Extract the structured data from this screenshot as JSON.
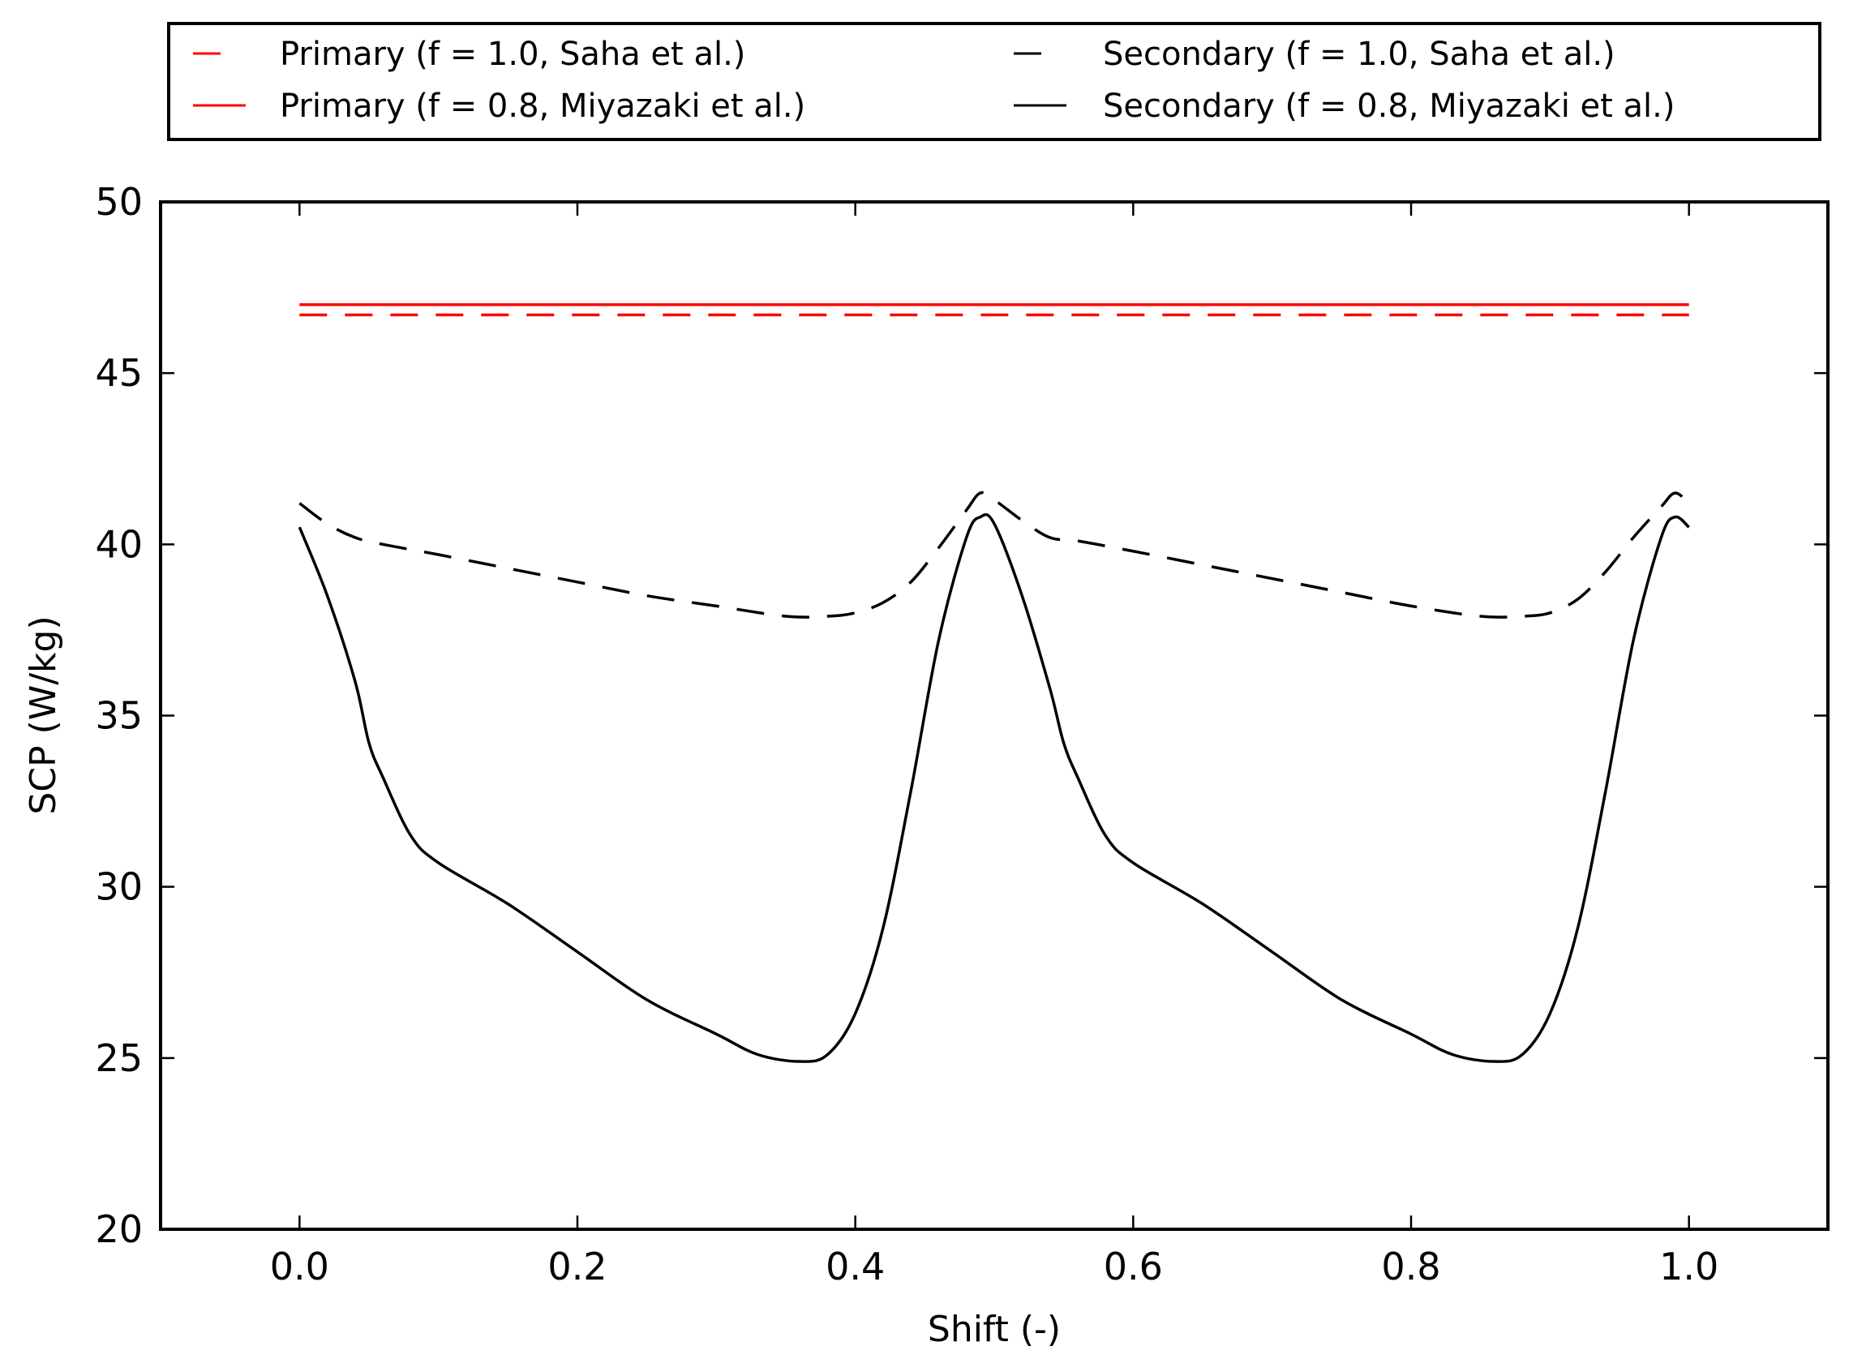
{
  "chart_data": {
    "type": "line",
    "title": "",
    "xlabel": "Shift (-)",
    "ylabel": "SCP (W/kg)",
    "xlim": [
      -0.1,
      1.1
    ],
    "ylim": [
      20,
      50
    ],
    "xticks": [
      0.0,
      0.2,
      0.4,
      0.6,
      0.8,
      1.0
    ],
    "xtick_labels": [
      "0.0",
      "0.2",
      "0.4",
      "0.6",
      "0.8",
      "1.0"
    ],
    "yticks": [
      20,
      25,
      30,
      35,
      40,
      45,
      50
    ],
    "ytick_labels": [
      "20",
      "25",
      "30",
      "35",
      "40",
      "45",
      "50"
    ],
    "grid": false,
    "legend_position": "top (outside, above plot), two columns",
    "series": [
      {
        "name": "Primary (f = 1.0, Saha et al.)",
        "color": "#ff0000",
        "style": "dashed",
        "x": [
          0.0,
          1.0
        ],
        "y": [
          46.7,
          46.7
        ]
      },
      {
        "name": "Primary (f = 0.8, Miyazaki et al.)",
        "color": "#ff0000",
        "style": "solid",
        "x": [
          0.0,
          1.0
        ],
        "y": [
          47.0,
          47.0
        ]
      },
      {
        "name": "Secondary (f = 1.0, Saha et al.)",
        "color": "#000000",
        "style": "dashed",
        "x": [
          0.0,
          0.02,
          0.04,
          0.06,
          0.1,
          0.15,
          0.2,
          0.25,
          0.3,
          0.35,
          0.38,
          0.4,
          0.42,
          0.44,
          0.46,
          0.48,
          0.49,
          0.5,
          0.52,
          0.54,
          0.56,
          0.6,
          0.65,
          0.7,
          0.75,
          0.8,
          0.85,
          0.88,
          0.9,
          0.92,
          0.94,
          0.96,
          0.98,
          0.99,
          1.0
        ],
        "y": [
          41.2,
          40.6,
          40.2,
          40.0,
          39.7,
          39.3,
          38.9,
          38.5,
          38.2,
          37.9,
          37.9,
          38.0,
          38.3,
          38.9,
          39.9,
          41.0,
          41.5,
          41.3,
          40.7,
          40.2,
          40.1,
          39.8,
          39.4,
          39.0,
          38.6,
          38.2,
          37.9,
          37.9,
          38.0,
          38.4,
          39.2,
          40.2,
          41.1,
          41.5,
          41.2
        ]
      },
      {
        "name": "Secondary (f = 0.8, Miyazaki et al.)",
        "color": "#000000",
        "style": "solid",
        "x": [
          0.0,
          0.02,
          0.04,
          0.05,
          0.06,
          0.08,
          0.1,
          0.15,
          0.2,
          0.25,
          0.3,
          0.33,
          0.36,
          0.38,
          0.4,
          0.42,
          0.44,
          0.46,
          0.48,
          0.49,
          0.5,
          0.52,
          0.54,
          0.55,
          0.56,
          0.58,
          0.6,
          0.65,
          0.7,
          0.75,
          0.8,
          0.83,
          0.86,
          0.88,
          0.9,
          0.92,
          0.94,
          0.96,
          0.98,
          0.99,
          1.0
        ],
        "y": [
          40.5,
          38.5,
          36.0,
          34.2,
          33.2,
          31.5,
          30.7,
          29.5,
          28.1,
          26.7,
          25.7,
          25.1,
          24.9,
          25.1,
          26.3,
          28.8,
          32.8,
          37.2,
          40.2,
          40.8,
          40.6,
          38.5,
          35.8,
          34.2,
          33.2,
          31.5,
          30.7,
          29.5,
          28.1,
          26.7,
          25.7,
          25.1,
          24.9,
          25.1,
          26.3,
          28.8,
          32.8,
          37.2,
          40.2,
          40.8,
          40.5
        ]
      }
    ]
  }
}
